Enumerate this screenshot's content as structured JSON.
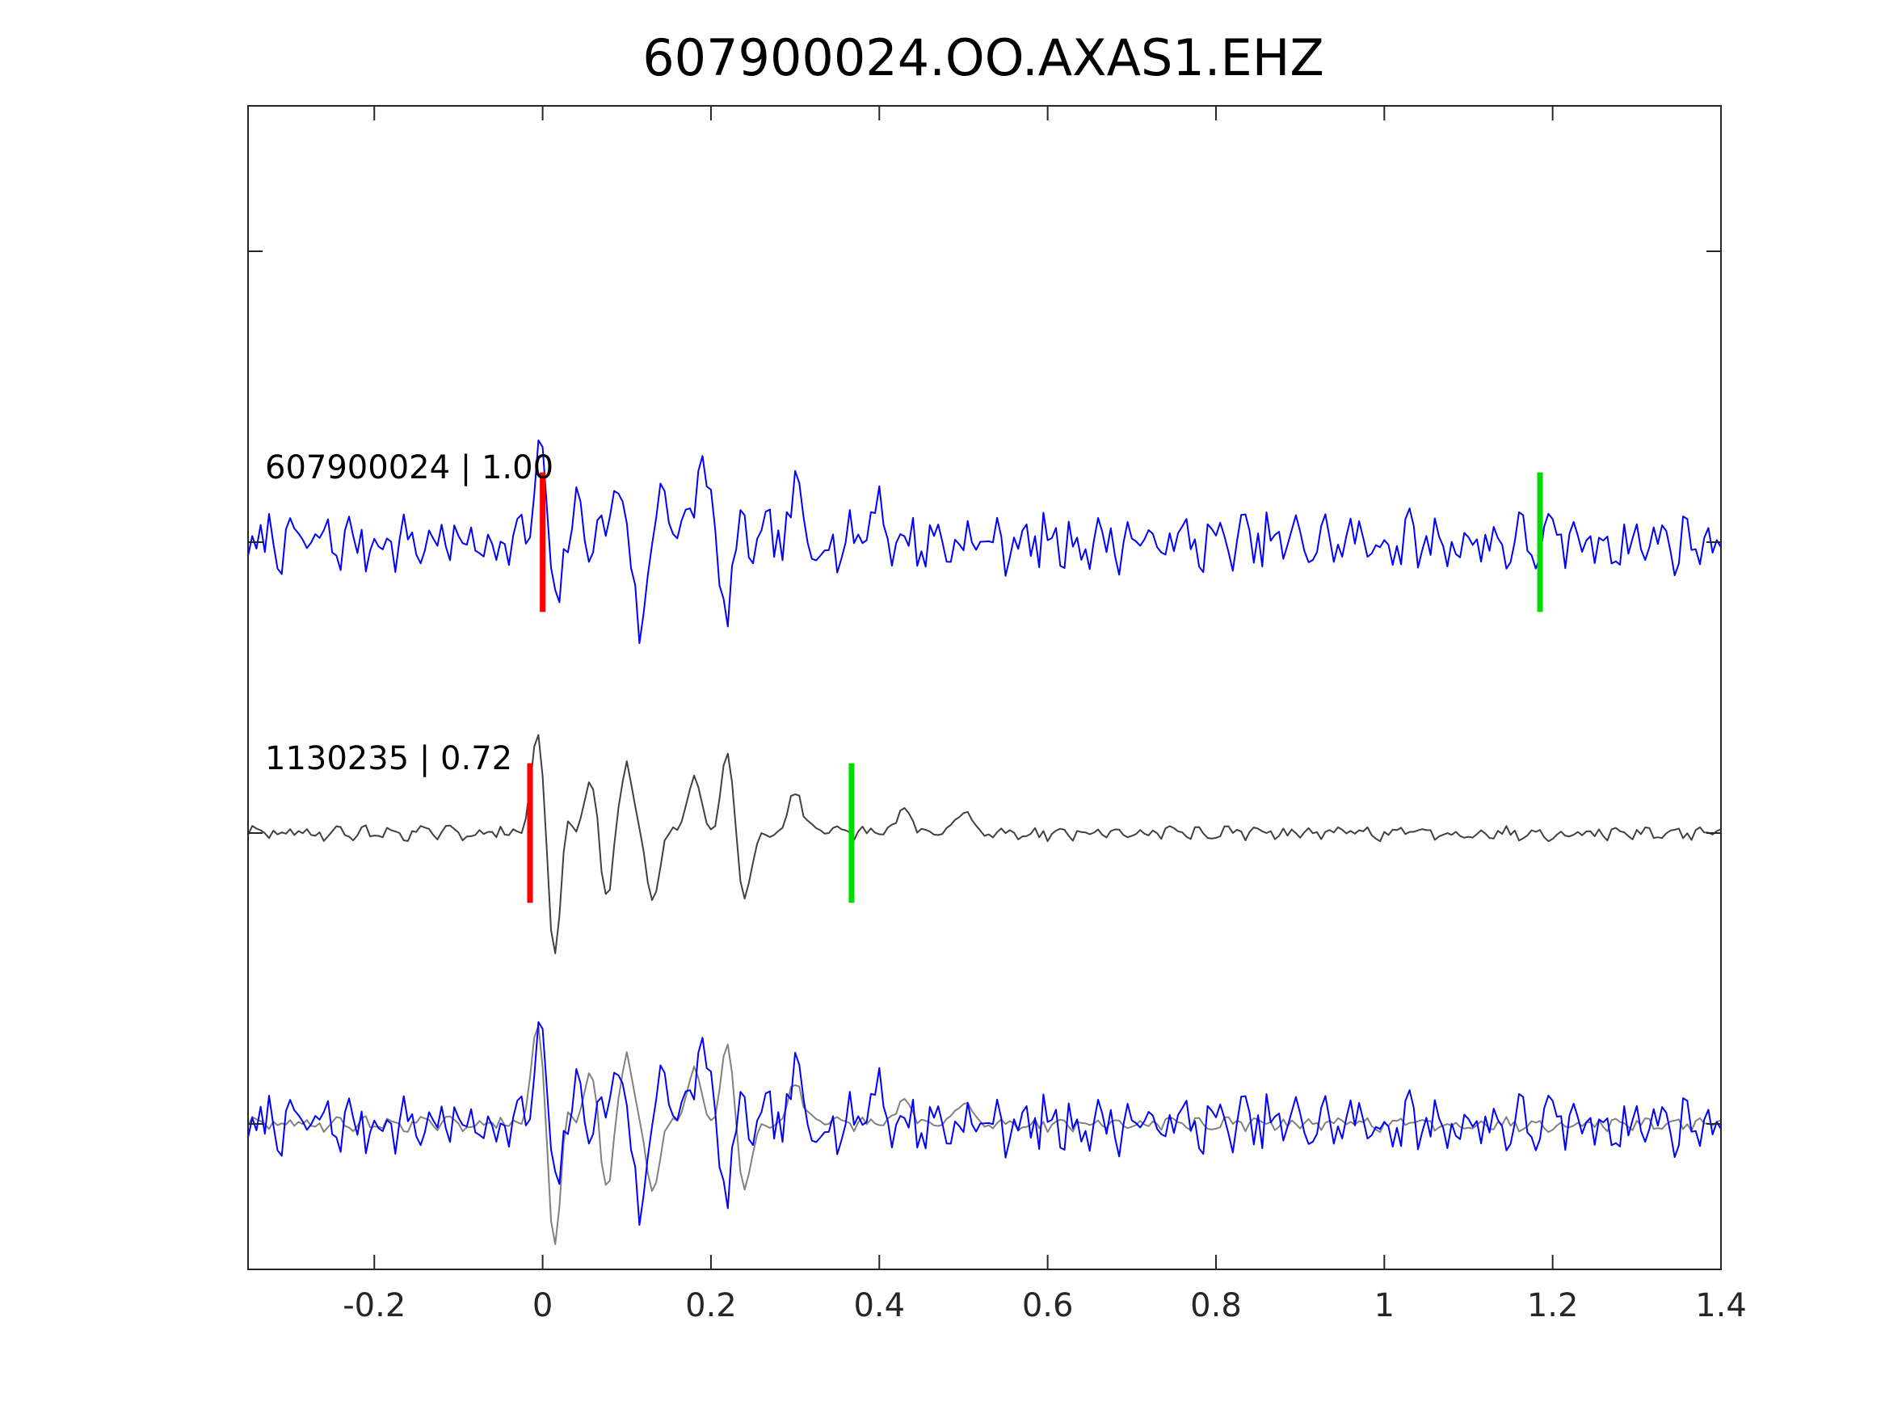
{
  "chart_data": {
    "type": "line",
    "title": "607900024.OO.AXAS1.EHZ",
    "xlabel": "",
    "ylabel": "",
    "xlim": [
      -0.35,
      1.4
    ],
    "ylim": [
      -0.5,
      3.5
    ],
    "x_ticks": [
      -0.2,
      0,
      0.2,
      0.4,
      0.6,
      0.8,
      1,
      1.2,
      1.4
    ],
    "x_tick_labels": [
      "-0.2",
      "0",
      "0.2",
      "0.4",
      "0.6",
      "0.8",
      "1",
      "1.2",
      "1.4"
    ],
    "y_ticks": [
      0,
      1,
      2,
      3
    ],
    "grid": false,
    "traces": [
      {
        "label": "607900024 | 1.00",
        "baseline": 2,
        "color": "#0000ff",
        "line_width": 2,
        "seed": 7,
        "noise": 0.075,
        "p_pick": 0.0,
        "s_pick": 1.185,
        "event": [
          {
            "t": 0.0,
            "a": 0.45
          },
          {
            "t": 0.01,
            "a": -0.35
          },
          {
            "t": 0.045,
            "a": 0.1
          },
          {
            "t": 0.09,
            "a": 0.22
          },
          {
            "t": 0.115,
            "a": -0.28
          },
          {
            "t": 0.145,
            "a": 0.2
          },
          {
            "t": 0.19,
            "a": 0.32
          },
          {
            "t": 0.215,
            "a": -0.22
          },
          {
            "t": 0.3,
            "a": 0.14
          },
          {
            "t": 0.395,
            "a": 0.15
          }
        ]
      },
      {
        "label": "1130235 | 0.72",
        "baseline": 1,
        "color": "#404040",
        "line_width": 2,
        "seed": 29,
        "noise": 0.018,
        "p_pick": -0.015,
        "s_pick": 0.367,
        "event": [
          {
            "t": -0.005,
            "a": 0.35
          },
          {
            "t": 0.015,
            "a": -0.5
          },
          {
            "t": 0.025,
            "a": 0.15
          },
          {
            "t": 0.06,
            "a": 0.2
          },
          {
            "t": 0.075,
            "a": -0.25
          },
          {
            "t": 0.1,
            "a": 0.24
          },
          {
            "t": 0.13,
            "a": -0.22
          },
          {
            "t": 0.18,
            "a": 0.2
          },
          {
            "t": 0.22,
            "a": 0.27
          },
          {
            "t": 0.24,
            "a": -0.22
          },
          {
            "t": 0.3,
            "a": 0.15
          },
          {
            "t": 0.43,
            "a": 0.09
          },
          {
            "t": 0.5,
            "a": 0.08
          }
        ]
      }
    ],
    "overlay": {
      "baseline": 0,
      "traces": [
        {
          "source": 1,
          "color": "#808080",
          "line_width": 2
        },
        {
          "source": 0,
          "color": "#0000ff",
          "line_width": 2
        }
      ]
    },
    "pick_colors": {
      "p": "#ff0000",
      "s": "#00dd00"
    }
  }
}
